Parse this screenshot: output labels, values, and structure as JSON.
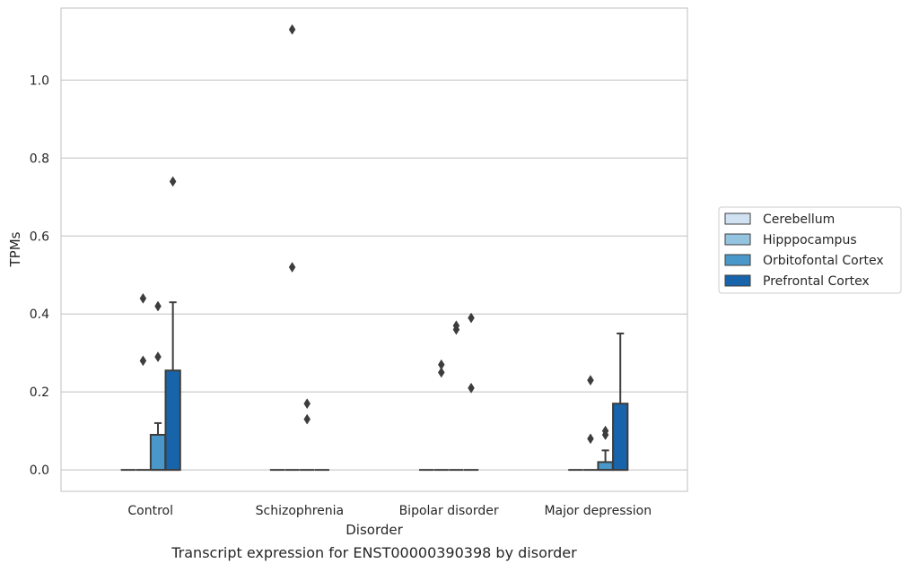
{
  "chart_data": {
    "type": "box",
    "caption": "Transcript expression for ENST00000390398 by disorder",
    "xlabel": "Disorder",
    "ylabel": "TPMs",
    "categories": [
      "Control",
      "Schizophrenia",
      "Bipolar disorder",
      "Major depression"
    ],
    "ylim": [
      -0.055,
      1.185
    ],
    "yticks": [
      0.0,
      0.2,
      0.4,
      0.6,
      0.8,
      1.0
    ],
    "ytick_labels": [
      "0.0",
      "0.2",
      "0.4",
      "0.6",
      "0.8",
      "1.0"
    ],
    "grid": "horizontal",
    "legend_position": "center-right outside",
    "series": [
      {
        "name": "Cerebellum",
        "color": "#d0e1f2",
        "boxes": [
          {
            "q1": 0,
            "median": 0,
            "q3": 0,
            "whisker_low": 0,
            "whisker_high": 0,
            "outliers": []
          },
          {
            "q1": 0,
            "median": 0,
            "q3": 0,
            "whisker_low": 0,
            "whisker_high": 0,
            "outliers": []
          },
          {
            "q1": 0,
            "median": 0,
            "q3": 0,
            "whisker_low": 0,
            "whisker_high": 0,
            "outliers": []
          },
          {
            "q1": 0,
            "median": 0,
            "q3": 0,
            "whisker_low": 0,
            "whisker_high": 0,
            "outliers": []
          }
        ]
      },
      {
        "name": "Hipppocampus",
        "color": "#94c4df",
        "boxes": [
          {
            "q1": 0,
            "median": 0,
            "q3": 0,
            "whisker_low": 0,
            "whisker_high": 0,
            "outliers": [
              0.28,
              0.44
            ]
          },
          {
            "q1": 0,
            "median": 0,
            "q3": 0,
            "whisker_low": 0,
            "whisker_high": 0,
            "outliers": [
              0.52,
              1.13
            ]
          },
          {
            "q1": 0,
            "median": 0,
            "q3": 0,
            "whisker_low": 0,
            "whisker_high": 0,
            "outliers": [
              0.25,
              0.27
            ]
          },
          {
            "q1": 0,
            "median": 0,
            "q3": 0,
            "whisker_low": 0,
            "whisker_high": 0,
            "outliers": [
              0.08,
              0.23
            ]
          }
        ]
      },
      {
        "name": "Orbitofontal Cortex",
        "color": "#4a98c9",
        "boxes": [
          {
            "q1": 0,
            "median": 0,
            "q3": 0.09,
            "whisker_low": 0,
            "whisker_high": 0.12,
            "outliers": [
              0.29,
              0.42
            ]
          },
          {
            "q1": 0,
            "median": 0,
            "q3": 0,
            "whisker_low": 0,
            "whisker_high": 0,
            "outliers": [
              0.13,
              0.17
            ]
          },
          {
            "q1": 0,
            "median": 0,
            "q3": 0,
            "whisker_low": 0,
            "whisker_high": 0,
            "outliers": [
              0.36,
              0.37
            ]
          },
          {
            "q1": 0,
            "median": 0,
            "q3": 0.02,
            "whisker_low": 0,
            "whisker_high": 0.05,
            "outliers": [
              0.09,
              0.1
            ]
          }
        ]
      },
      {
        "name": "Prefrontal Cortex",
        "color": "#1764ab",
        "boxes": [
          {
            "q1": 0,
            "median": 0,
            "q3": 0.255,
            "whisker_low": 0,
            "whisker_high": 0.43,
            "outliers": [
              0.74
            ]
          },
          {
            "q1": 0,
            "median": 0,
            "q3": 0,
            "whisker_low": 0,
            "whisker_high": 0,
            "outliers": []
          },
          {
            "q1": 0,
            "median": 0,
            "q3": 0,
            "whisker_low": 0,
            "whisker_high": 0,
            "outliers": [
              0.21,
              0.39
            ]
          },
          {
            "q1": 0,
            "median": 0,
            "q3": 0.17,
            "whisker_low": 0,
            "whisker_high": 0.35,
            "outliers": []
          }
        ]
      }
    ]
  }
}
